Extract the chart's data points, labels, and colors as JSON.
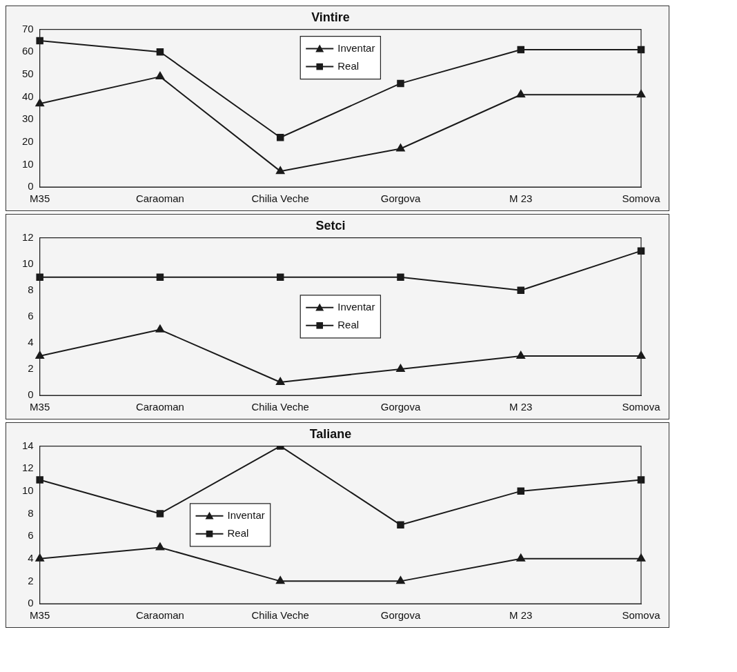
{
  "chart_data": [
    {
      "type": "line",
      "title": "Vintire",
      "categories": [
        "M35",
        "Caraoman",
        "Chilia Veche",
        "Gorgova",
        "M 23",
        "Somova"
      ],
      "ylim": [
        0,
        70
      ],
      "yticks": [
        0,
        10,
        20,
        30,
        40,
        50,
        60,
        70
      ],
      "grid": false,
      "legend": "top",
      "line_style": "solid",
      "series": [
        {
          "name": "Inventar",
          "color": "#1a1a1a",
          "marker": "triangle",
          "values": [
            37,
            49,
            7,
            17,
            41,
            41
          ]
        },
        {
          "name": "Real",
          "color": "#1a1a1a",
          "marker": "square",
          "values": [
            65,
            60,
            22,
            46,
            61,
            61
          ]
        }
      ]
    },
    {
      "type": "line",
      "title": "Setci",
      "categories": [
        "M35",
        "Caraoman",
        "Chilia Veche",
        "Gorgova",
        "M 23",
        "Somova"
      ],
      "ylim": [
        0,
        12
      ],
      "yticks": [
        0,
        2,
        4,
        6,
        8,
        10,
        12
      ],
      "grid": false,
      "legend": "center",
      "line_style": "solid",
      "series": [
        {
          "name": "Inventar",
          "color": "#1a1a1a",
          "marker": "triangle",
          "values": [
            3,
            5,
            1,
            2,
            3,
            3
          ]
        },
        {
          "name": "Real",
          "color": "#1a1a1a",
          "marker": "square",
          "values": [
            9,
            9,
            9,
            9,
            8,
            11
          ]
        }
      ]
    },
    {
      "type": "line",
      "title": "Taliane",
      "categories": [
        "M35",
        "Caraoman",
        "Chilia Veche",
        "Gorgova",
        "M 23",
        "Somova"
      ],
      "ylim": [
        0,
        14
      ],
      "yticks": [
        0,
        2,
        4,
        6,
        8,
        10,
        12,
        14
      ],
      "grid": false,
      "legend": "center left",
      "line_style": "solid",
      "series": [
        {
          "name": "Inventar",
          "color": "#1a1a1a",
          "marker": "triangle",
          "values": [
            4,
            5,
            2,
            2,
            4,
            4
          ]
        },
        {
          "name": "Real",
          "color": "#1a1a1a",
          "marker": "square",
          "values": [
            11,
            8,
            14,
            7,
            10,
            11
          ]
        }
      ]
    }
  ]
}
